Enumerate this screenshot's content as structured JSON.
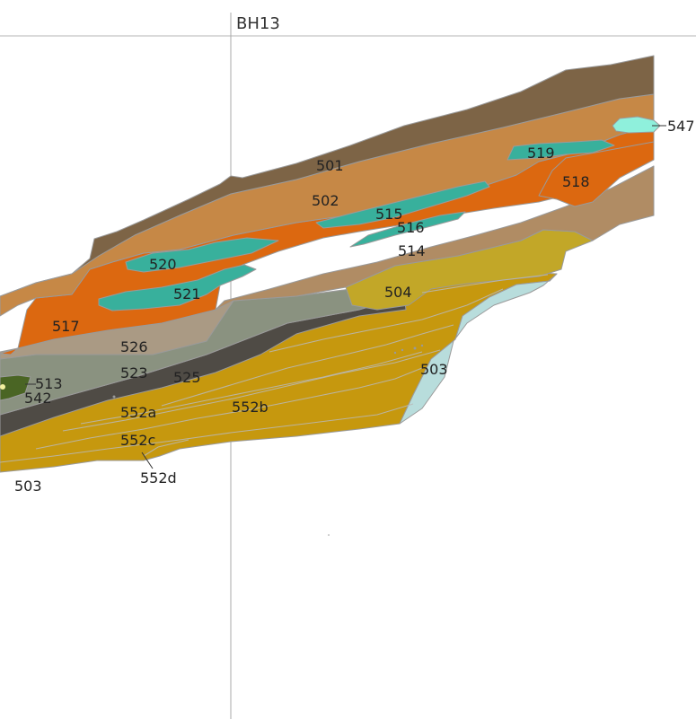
{
  "borehole": {
    "label": "BH13"
  },
  "colors": {
    "c501": "#7d6446",
    "c502": "#c68846",
    "c517": "#dc6810",
    "c514": "#b08c64",
    "c504": "#c2a728",
    "c552": "#c6980e",
    "c503": "#b8dddc",
    "c526": "#aa9a84",
    "c523": "#8a9280",
    "c525": "#4f4b45",
    "c513": "#4a6524",
    "c515": "#38b09c",
    "c547": "#8ff0dc"
  },
  "labels": {
    "l501": "501",
    "l502": "502",
    "l503a": "503",
    "l503b": "503",
    "l504": "504",
    "l513": "513",
    "l514": "514",
    "l515": "515",
    "l516": "516",
    "l517": "517",
    "l518": "518",
    "l519": "519",
    "l520": "520",
    "l521": "521",
    "l523": "523",
    "l525": "525",
    "l526": "526",
    "l542": "542",
    "l547": "547",
    "l552a": "552a",
    "l552b": "552b",
    "l552c": "552c",
    "l552d": "552d"
  }
}
